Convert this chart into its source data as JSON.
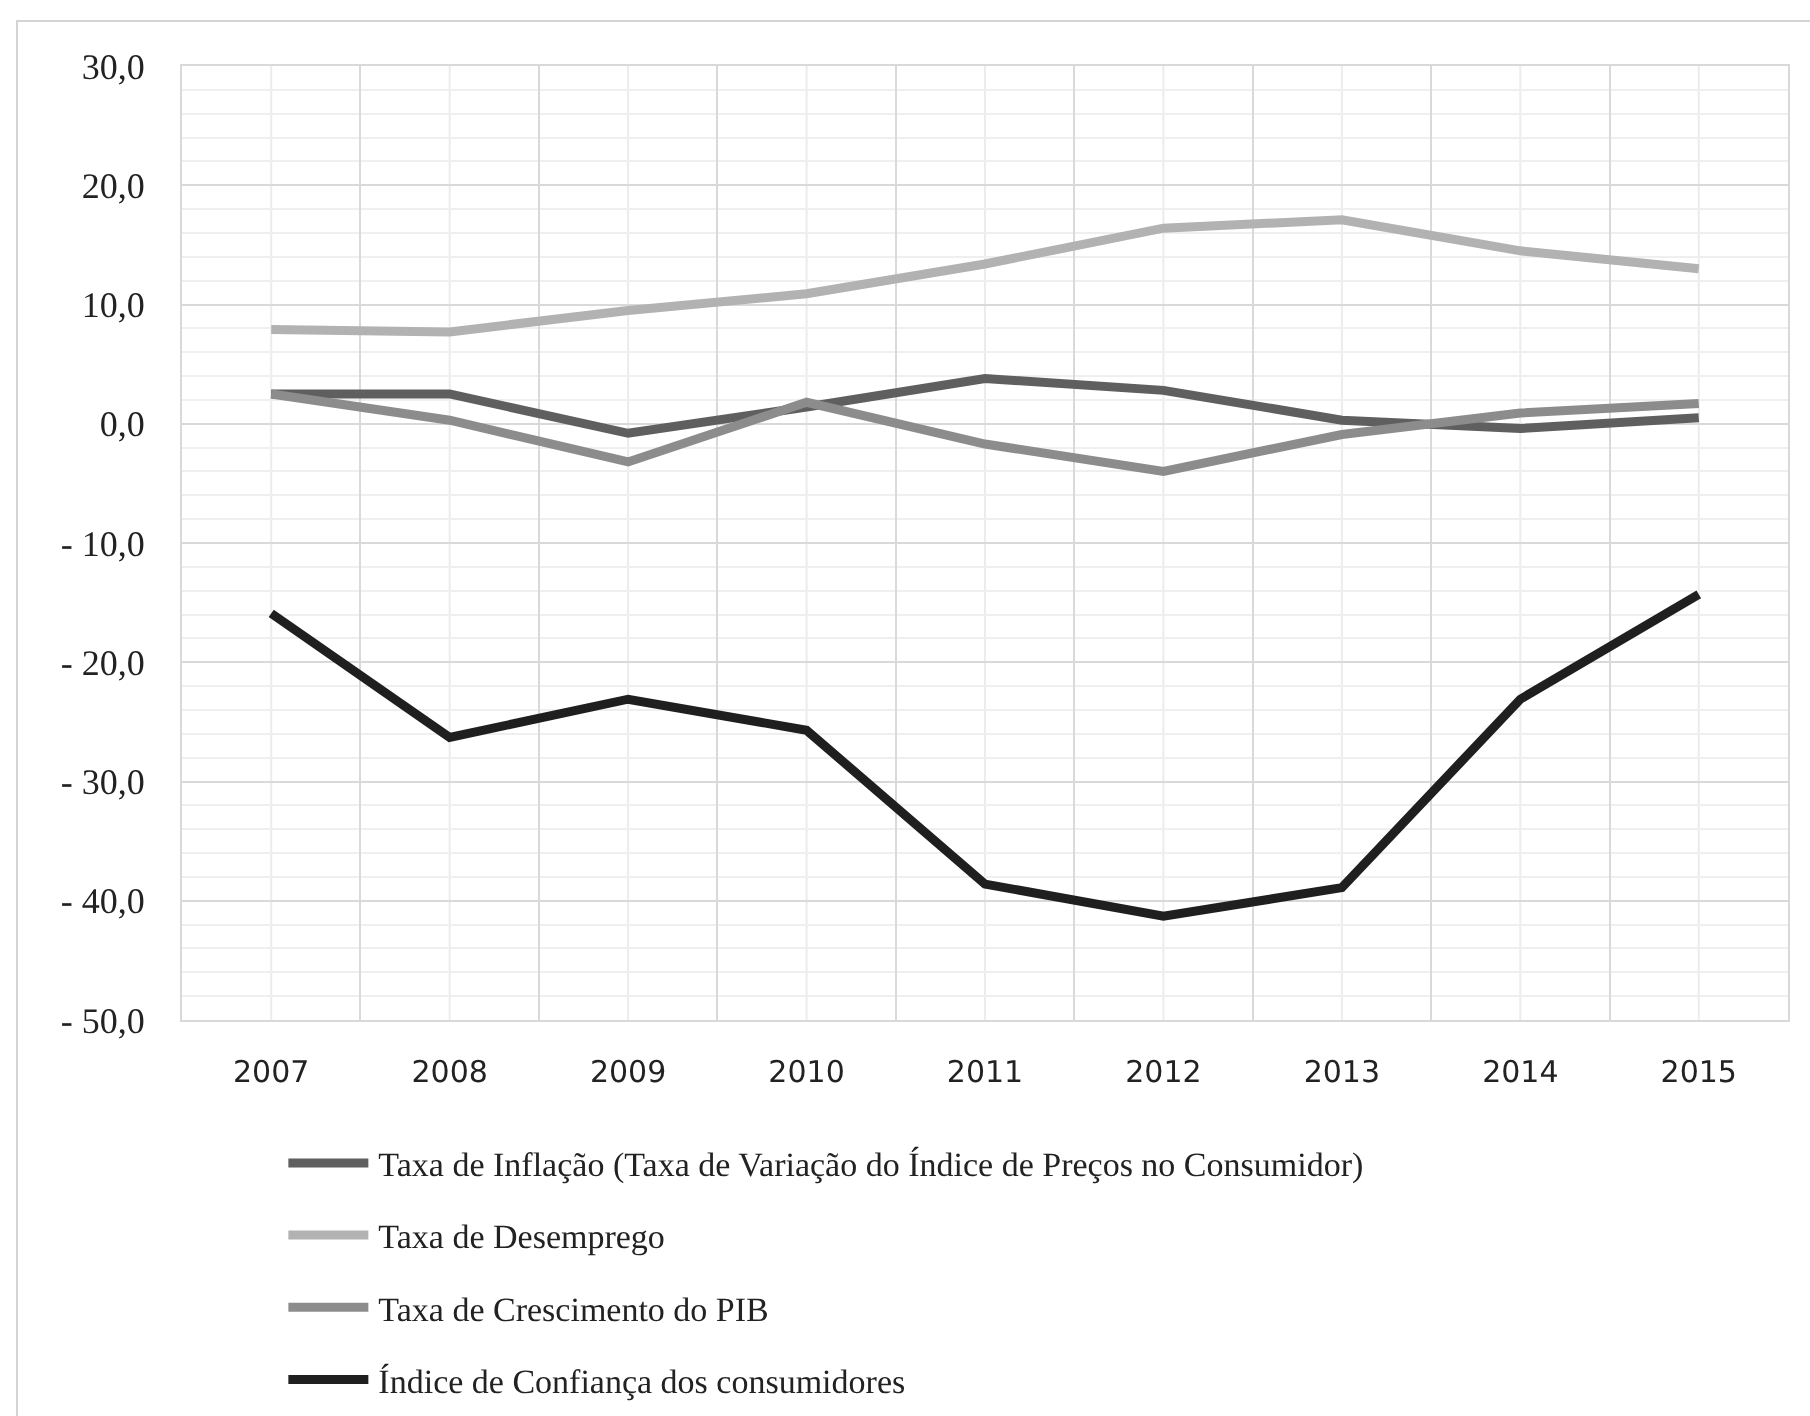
{
  "chart_data": {
    "type": "line",
    "categories": [
      "2007",
      "2008",
      "2009",
      "2010",
      "2011",
      "2012",
      "2013",
      "2014",
      "2015"
    ],
    "series": [
      {
        "name": "Taxa de Inflação (Taxa de Variação do Índice de Preços no Consumidor)",
        "color": "#5f5f5f",
        "values": [
          2.5,
          2.5,
          -0.8,
          1.4,
          3.8,
          2.8,
          0.3,
          -0.4,
          0.5
        ]
      },
      {
        "name": "Taxa de Desemprego",
        "color": "#b2b2b2",
        "values": [
          7.9,
          7.7,
          9.5,
          10.9,
          13.4,
          16.4,
          17.1,
          14.5,
          13.0
        ]
      },
      {
        "name": "Taxa de Crescimento do PIB",
        "color": "#8c8c8c",
        "values": [
          2.5,
          0.3,
          -3.2,
          1.8,
          -1.7,
          -4.0,
          -0.9,
          0.9,
          1.7
        ]
      },
      {
        "name": "Índice de Confiança dos consumidores",
        "color": "#1f1f1f",
        "values": [
          -15.9,
          -26.3,
          -23.1,
          -25.7,
          -38.6,
          -41.3,
          -38.9,
          -23.1,
          -14.3
        ]
      }
    ],
    "ylim": [
      -50,
      30
    ],
    "yticks": [
      {
        "value": -50,
        "label": "- 50,0"
      },
      {
        "value": -40,
        "label": "- 40,0"
      },
      {
        "value": -30,
        "label": "- 30,0"
      },
      {
        "value": -20,
        "label": "- 20,0"
      },
      {
        "value": -10,
        "label": "- 10,0"
      },
      {
        "value": 0,
        "label": "0,0"
      },
      {
        "value": 10,
        "label": "10,0"
      },
      {
        "value": 20,
        "label": "20,0"
      },
      {
        "value": 30,
        "label": "30,0"
      }
    ],
    "grid": true,
    "legend": "bottom",
    "marker": "none",
    "line_style": "solid"
  }
}
